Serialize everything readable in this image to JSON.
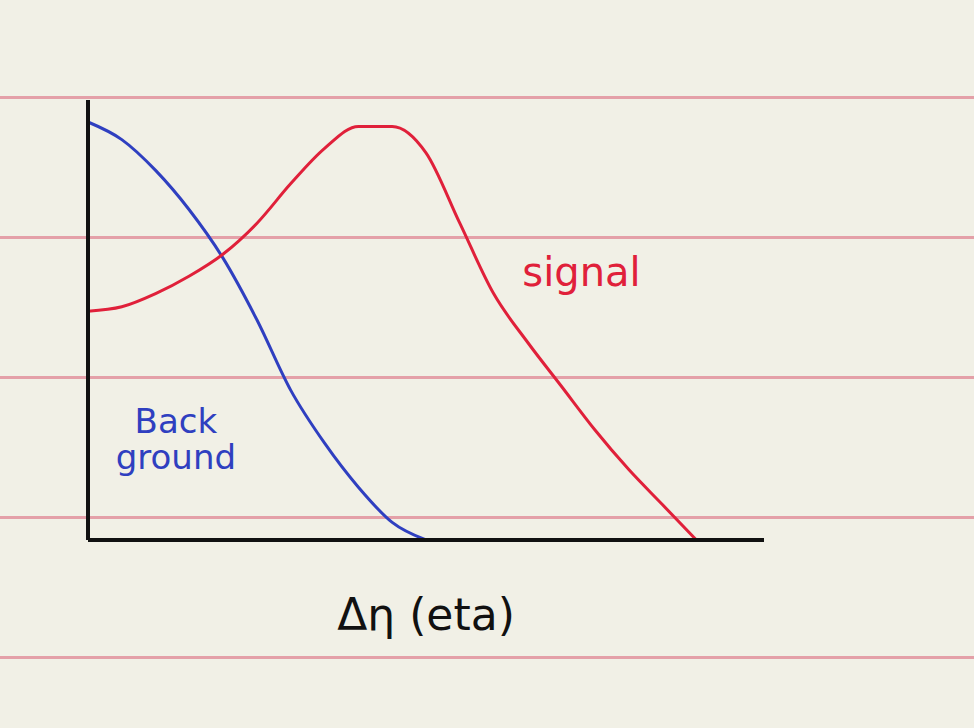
{
  "chart_data": {
    "type": "line",
    "x_label": "Δη (eta)",
    "x": [
      0,
      0.5,
      1,
      1.5,
      2,
      2.5,
      3,
      3.5,
      4,
      4.5,
      5,
      5.5,
      6,
      6.5,
      7,
      7.5,
      8,
      8.5,
      9
    ],
    "series": [
      {
        "name": "Back ground",
        "color": "#2f3fc0",
        "values": [
          9.5,
          9.1,
          8.4,
          7.5,
          6.4,
          5.0,
          3.4,
          2.2,
          1.2,
          0.4,
          0,
          null,
          null,
          null,
          null,
          null,
          null,
          null,
          null
        ]
      },
      {
        "name": "signal",
        "color": "#e0203a",
        "values": [
          5.2,
          5.3,
          5.6,
          6.0,
          6.5,
          7.2,
          8.1,
          8.9,
          9.4,
          9.4,
          8.8,
          7.2,
          5.6,
          4.5,
          3.5,
          2.5,
          1.6,
          0.8,
          0
        ]
      }
    ],
    "annotations": [
      {
        "text": "Back ground",
        "x": 1.3,
        "y": 2.3,
        "color": "#2f3fc0"
      },
      {
        "text": "signal",
        "x": 7.3,
        "y": 6.1,
        "color": "#e0203a"
      }
    ],
    "xlim": [
      0,
      10
    ],
    "ylim": [
      0,
      10
    ],
    "tick_labels": false,
    "grid": false
  }
}
